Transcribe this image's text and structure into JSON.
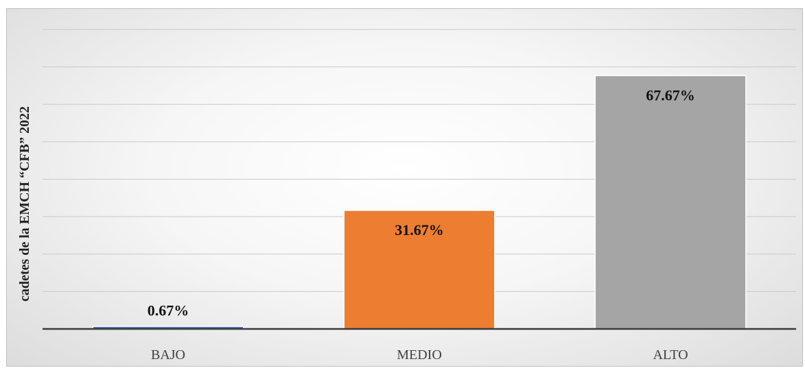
{
  "chart_data": {
    "type": "bar",
    "title": "",
    "ylabel": "cadetes de la EMCH “CFB” 2022",
    "xlabel": "",
    "categories": [
      "BAJO",
      "MEDIO",
      "ALTO"
    ],
    "values": [
      0.67,
      31.67,
      67.67
    ],
    "data_labels": [
      "0.67%",
      "31.67%",
      "67.67%"
    ],
    "bar_colors": [
      "#4472c4",
      "#ed7d31",
      "#a5a5a5"
    ],
    "ylim": [
      0,
      80
    ],
    "grid": true,
    "legend": "none"
  }
}
